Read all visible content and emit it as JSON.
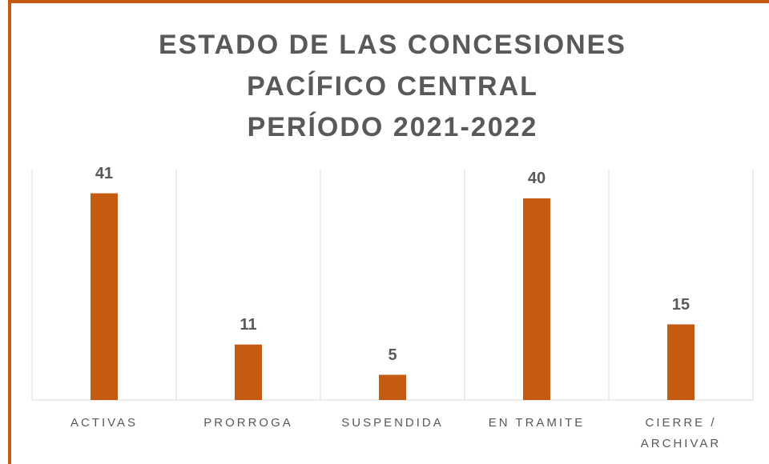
{
  "chart_data": {
    "type": "bar",
    "title": [
      "ESTADO DE LAS CONCESIONES",
      "PACÍFICO CENTRAL",
      "PERÍODO 2021-2022"
    ],
    "categories": [
      "ACTIVAS",
      "PRORROGA",
      "SUSPENDIDA",
      "EN TRAMITE",
      "CIERRE / ARCHIVAR"
    ],
    "values": [
      41,
      11,
      5,
      40,
      15
    ],
    "color": "#c55a11",
    "ylim": [
      0,
      45.7
    ],
    "grid": true
  }
}
